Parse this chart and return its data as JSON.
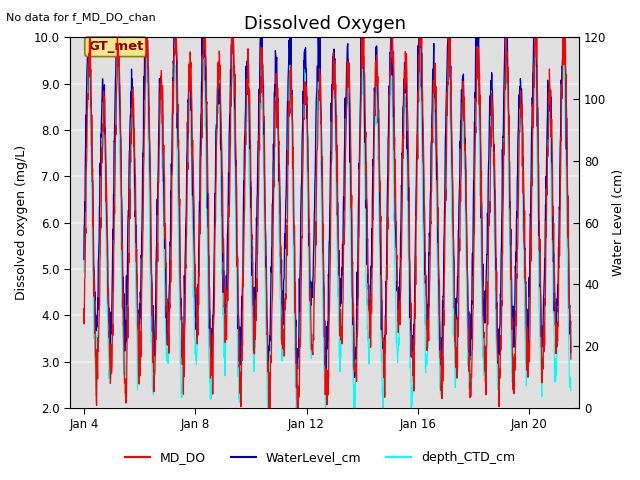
{
  "title": "Dissolved Oxygen",
  "top_left_text": "No data for f_MD_DO_chan",
  "annotation_text": "GT_met",
  "ylabel_left": "Dissolved oxygen (mg/L)",
  "ylabel_right": "Water Level (cm)",
  "ylim_left": [
    2.0,
    10.0
  ],
  "ylim_right": [
    0,
    120
  ],
  "xlim": [
    3.5,
    21.8
  ],
  "xtick_labels": [
    "Jan 4",
    "Jan 8",
    "Jan 12",
    "Jan 16",
    "Jan 20"
  ],
  "xtick_positions": [
    4,
    8,
    12,
    16,
    20
  ],
  "yticks_left": [
    2.0,
    3.0,
    4.0,
    5.0,
    6.0,
    7.0,
    8.0,
    9.0,
    10.0
  ],
  "yticks_right": [
    0,
    20,
    40,
    60,
    80,
    100,
    120
  ],
  "legend_labels": [
    "MD_DO",
    "WaterLevel_cm",
    "depth_CTD_cm"
  ],
  "legend_colors": [
    "red",
    "#0000bb",
    "cyan"
  ],
  "axes_bg_color": "#e0e0e0",
  "grid_color": "#f0f0f0",
  "title_fontsize": 13,
  "label_fontsize": 9,
  "tick_fontsize": 8.5
}
